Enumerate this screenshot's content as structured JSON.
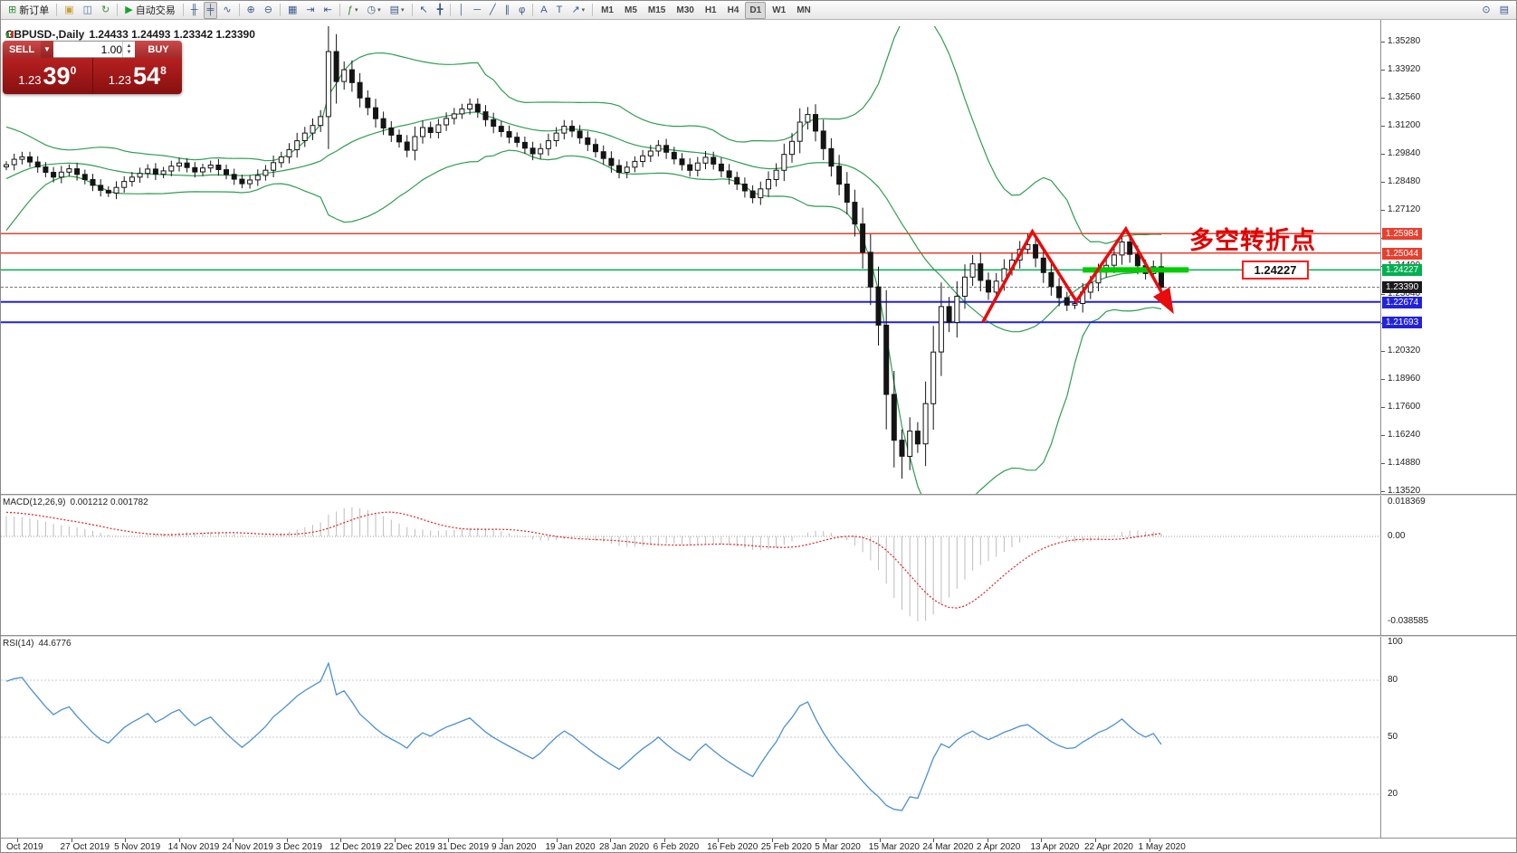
{
  "toolbar": {
    "groups": [
      {
        "buttons": [
          {
            "name": "new-order",
            "glyph": "⊞",
            "glyph_color": "#2e8b2e",
            "label": "新订单"
          }
        ]
      },
      {
        "buttons": [
          {
            "name": "new-chart",
            "glyph": "▣",
            "glyph_color": "#c8a03c"
          },
          {
            "name": "profiles",
            "glyph": "◫",
            "glyph_color": "#4a6ea9"
          },
          {
            "name": "refresh",
            "glyph": "↻",
            "glyph_color": "#3f8f3f"
          }
        ]
      },
      {
        "buttons": [
          {
            "name": "algo-trading",
            "glyph": "▶",
            "glyph_color": "#18a12c",
            "label": "自动交易"
          }
        ]
      },
      {
        "buttons": [
          {
            "name": "bar-chart",
            "glyph": "╫"
          },
          {
            "name": "candlestick-chart",
            "glyph": "╪",
            "active": true
          },
          {
            "name": "line-chart",
            "glyph": "∿"
          }
        ]
      },
      {
        "buttons": [
          {
            "name": "zoom-in",
            "glyph": "⊕"
          },
          {
            "name": "zoom-out",
            "glyph": "⊖"
          }
        ]
      },
      {
        "buttons": [
          {
            "name": "tile-windows",
            "glyph": "▦"
          },
          {
            "name": "auto-scroll",
            "glyph": "⇥"
          },
          {
            "name": "chart-shift",
            "glyph": "⇤"
          }
        ]
      },
      {
        "buttons": [
          {
            "name": "indicators",
            "glyph": "ƒ",
            "glyph_color": "#2e8b2e",
            "caret": true
          },
          {
            "name": "periods-menu",
            "glyph": "◷",
            "caret": true
          },
          {
            "name": "templates",
            "glyph": "▤",
            "caret": true
          }
        ]
      },
      {
        "buttons": [
          {
            "name": "cursor",
            "glyph": "↖"
          },
          {
            "name": "crosshair",
            "glyph": "╋"
          }
        ]
      },
      {
        "buttons": [
          {
            "name": "vertical-line",
            "glyph": "│"
          },
          {
            "name": "horizontal-line",
            "glyph": "─"
          },
          {
            "name": "trendline",
            "glyph": "╱"
          },
          {
            "name": "channel",
            "glyph": "∥"
          },
          {
            "name": "fibonacci",
            "glyph": "φ"
          }
        ]
      },
      {
        "buttons": [
          {
            "name": "text",
            "glyph": "A"
          },
          {
            "name": "text-label",
            "glyph": "T"
          },
          {
            "name": "arrow-objects",
            "glyph": "↗",
            "caret": true
          }
        ]
      },
      {
        "type": "tf",
        "buttons": [
          {
            "name": "tf-m1",
            "label": "M1"
          },
          {
            "name": "tf-m5",
            "label": "M5"
          },
          {
            "name": "tf-m15",
            "label": "M15"
          },
          {
            "name": "tf-m30",
            "label": "M30"
          },
          {
            "name": "tf-h1",
            "label": "H1"
          },
          {
            "name": "tf-h4",
            "label": "H4"
          },
          {
            "name": "tf-d1",
            "label": "D1",
            "active": true
          },
          {
            "name": "tf-w1",
            "label": "W1"
          },
          {
            "name": "tf-mn",
            "label": "MN"
          }
        ]
      }
    ],
    "right_buttons": [
      {
        "name": "search",
        "glyph": "⊙"
      },
      {
        "name": "object-list",
        "glyph": "▤"
      }
    ]
  },
  "chart": {
    "symbol_title": "GBPUSD-,Daily",
    "ohlc": "1.24433 1.24493 1.23342 1.23390"
  },
  "trade_panel": {
    "sell_label": "SELL",
    "buy_label": "BUY",
    "volume": "1.00",
    "caret": "▼",
    "spin_up": "▲",
    "spin_down": "▼",
    "sell_price": {
      "small": "1.23",
      "big": "39",
      "sup": "0"
    },
    "buy_price": {
      "small": "1.23",
      "big": "54",
      "sup": "8"
    }
  },
  "annotation": {
    "text": "多空转折点",
    "color": "#e10000"
  },
  "price_tag": {
    "text": "1.24227"
  },
  "colors": {
    "up_candle": "#ffffff",
    "down_candle": "#141414",
    "bollinger": "#2e9e4f",
    "resistance_red": "#e8402e",
    "support_blue": "#2222dd",
    "level_green": "#00b050",
    "highlight_green": "#00cc00",
    "zigzag_red": "#e80c0c",
    "current_price_line": "#777777",
    "macd_hist": "#bdbdbd",
    "macd_signal": "#e02020",
    "rsi_line": "#4a90d2"
  },
  "levels": [
    {
      "price": 1.25984,
      "color": "#e8402e",
      "w": 1.5
    },
    {
      "price": 1.25044,
      "color": "#e8402e",
      "w": 1.5
    },
    {
      "price": 1.24227,
      "color": "#00b050",
      "w": 1.5
    },
    {
      "price": 1.2339,
      "color": "#777777",
      "w": 1,
      "dash": "3,2"
    },
    {
      "price": 1.22674,
      "color": "#2222dd",
      "w": 2
    },
    {
      "price": 1.21693,
      "color": "#2222dd",
      "w": 2
    }
  ],
  "price_axis": {
    "gridlines": [
      "1.35280",
      "1.33920",
      "1.32560",
      "1.31200",
      "1.29840",
      "1.28480",
      "1.27120",
      "1.25760",
      "1.24400",
      "1.23040",
      "1.21680",
      "1.20320",
      "1.18960",
      "1.17600",
      "1.16240",
      "1.14880",
      "1.13520"
    ],
    "badges": [
      {
        "text": "1.25984",
        "bg": "#e8402e"
      },
      {
        "text": "1.25044",
        "bg": "#e8402e"
      },
      {
        "text": "1.24227",
        "bg": "#00b050"
      },
      {
        "text": "1.23390",
        "bg": "#1a1a1a"
      },
      {
        "text": "1.22674",
        "bg": "#2222dd"
      },
      {
        "text": "1.21693",
        "bg": "#2222dd"
      }
    ]
  },
  "time_axis": {
    "labels": [
      "Oct 2019",
      "27 Oct 2019",
      "5 Nov 2019",
      "14 Nov 2019",
      "24 Nov 2019",
      "3 Dec 2019",
      "12 Dec 2019",
      "22 Dec 2019",
      "31 Dec 2019",
      "9 Jan 2020",
      "19 Jan 2020",
      "28 Jan 2020",
      "6 Feb 2020",
      "16 Feb 2020",
      "25 Feb 2020",
      "5 Mar 2020",
      "15 Mar 2020",
      "24 Mar 2020",
      "2 Apr 2020",
      "13 Apr 2020",
      "22 Apr 2020",
      "1 May 2020"
    ]
  },
  "chart_data": {
    "type": "candlestick",
    "symbol": "GBPUSD",
    "timeframe": "Daily",
    "last_ohlc": {
      "open": "1.24433",
      "high": "1.24493",
      "low": "1.23342",
      "close": "1.23390"
    },
    "open_rule": "open approximated as previous close; values estimated from chart",
    "pre_closes": [
      1.2562,
      1.259,
      1.2625,
      1.2666,
      1.271,
      1.2752,
      1.2796,
      1.2838,
      1.2878,
      1.2912,
      1.294,
      1.2962,
      1.298,
      1.2992,
      1.297,
      1.2985,
      1.2955,
      1.293,
      1.2948,
      1.2922
    ],
    "closes": [
      1.2932,
      1.2958,
      1.297,
      1.2945,
      1.2921,
      1.2895,
      1.2872,
      1.2896,
      1.2912,
      1.2885,
      1.286,
      1.2832,
      1.2808,
      1.2795,
      1.2822,
      1.2851,
      1.2872,
      1.289,
      1.2911,
      1.2886,
      1.2902,
      1.2925,
      1.294,
      1.2918,
      1.2897,
      1.2916,
      1.293,
      1.2908,
      1.2885,
      1.2862,
      1.284,
      1.2858,
      1.288,
      1.2905,
      1.2942,
      1.297,
      1.3005,
      1.3048,
      1.3085,
      1.3122,
      1.3165,
      1.348,
      1.3335,
      1.3392,
      1.333,
      1.3255,
      1.3208,
      1.3155,
      1.311,
      1.3075,
      1.3042,
      1.3002,
      1.3068,
      1.3112,
      1.3088,
      1.3125,
      1.3156,
      1.3178,
      1.3202,
      1.3225,
      1.3188,
      1.315,
      1.3118,
      1.3092,
      1.3065,
      1.304,
      1.3012,
      1.2985,
      1.301,
      1.3048,
      1.3085,
      1.3118,
      1.3095,
      1.3062,
      1.303,
      1.2995,
      1.2962,
      1.2928,
      1.2895,
      1.292,
      1.2948,
      1.2975,
      1.2998,
      1.3025,
      1.2992,
      1.296,
      1.2932,
      1.2905,
      1.294,
      1.2968,
      1.2935,
      1.2902,
      1.287,
      1.2838,
      1.2805,
      1.2772,
      1.2815,
      1.286,
      1.2905,
      1.2982,
      1.3045,
      1.3138,
      1.3175,
      1.3095,
      1.301,
      1.2925,
      1.2838,
      1.275,
      1.2645,
      1.2508,
      1.234,
      1.2155,
      1.182,
      1.1598,
      1.152,
      1.1642,
      1.158,
      1.1775,
      1.2025,
      1.2245,
      1.2168,
      1.2295,
      1.2388,
      1.2452,
      1.2372,
      1.2315,
      1.2368,
      1.2428,
      1.247,
      1.2522,
      1.2545,
      1.248,
      1.241,
      1.2342,
      1.2288,
      1.2252,
      1.226,
      1.2315,
      1.236,
      1.2412,
      1.2445,
      1.2495,
      1.2558,
      1.2498,
      1.2443,
      1.2405,
      1.2438,
      1.2339
    ],
    "specials": [
      {
        "i": 41,
        "h": 1.3515
      },
      {
        "i": 42,
        "l": 1.3228
      },
      {
        "i": 101,
        "h": 1.3205
      },
      {
        "i": 112,
        "l": 1.168
      },
      {
        "i": 113,
        "l": 1.1466
      },
      {
        "i": 114,
        "l": 1.1412
      },
      {
        "i": 130,
        "h": 1.2598
      },
      {
        "i": 135,
        "l": 1.2247
      },
      {
        "i": 142,
        "h": 1.2602
      },
      {
        "i": 147,
        "h": 1.24493,
        "l": 1.23342
      }
    ],
    "bollinger": {
      "period": 20,
      "deviation": 2
    },
    "highlight_segment": {
      "price": 1.24227,
      "i1": 137.0,
      "i2": 150.5
    },
    "zigzag_points": [
      [
        124.3,
        1.217
      ],
      [
        130.6,
        1.2608
      ],
      [
        136.2,
        1.2271
      ],
      [
        142.5,
        1.2621
      ],
      [
        148.2,
        1.2236
      ]
    ],
    "macd": {
      "label": "MACD(12,26,9)",
      "values": "0.001212 0.001782",
      "params": [
        12,
        26,
        9
      ],
      "axis": [
        "0.018369",
        "0.00",
        "-0.038585"
      ]
    },
    "rsi": {
      "label": "RSI(14)",
      "value": "44.6776",
      "period": 14,
      "levels": [
        80,
        50,
        20
      ],
      "axis": [
        100,
        80,
        50,
        20
      ]
    }
  }
}
